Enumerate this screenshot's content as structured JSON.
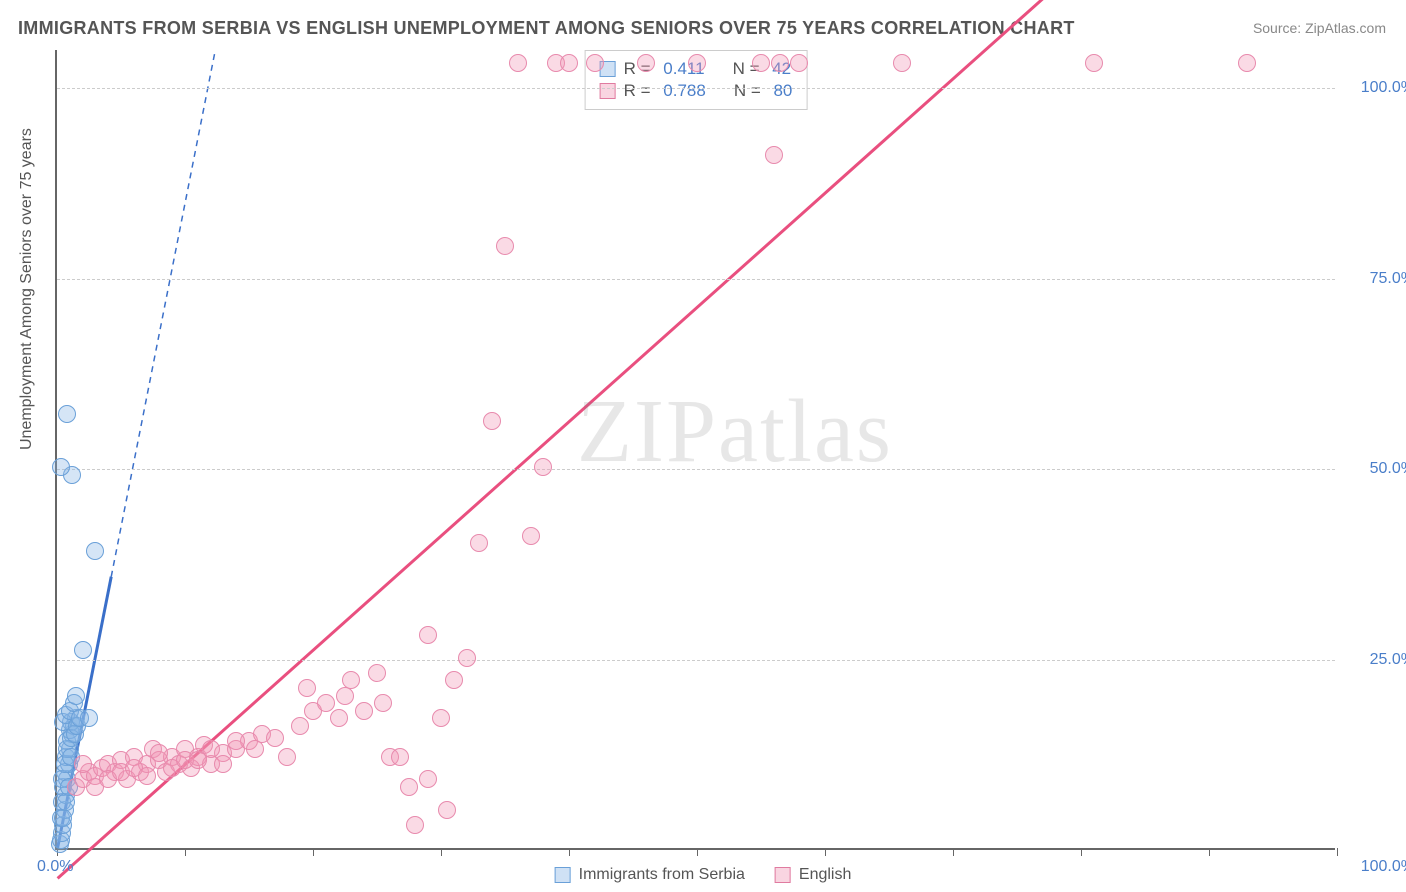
{
  "title": "IMMIGRANTS FROM SERBIA VS ENGLISH UNEMPLOYMENT AMONG SENIORS OVER 75 YEARS CORRELATION CHART",
  "source": "Source: ZipAtlas.com",
  "ylabel": "Unemployment Among Seniors over 75 years",
  "watermark": "ZIPatlas",
  "chart": {
    "type": "scatter",
    "background_color": "#ffffff",
    "grid_color": "#cccccc",
    "axis_color": "#666666",
    "tick_label_color": "#4a7ec9",
    "label_color": "#555555",
    "xlim": [
      0,
      100
    ],
    "ylim": [
      0,
      105
    ],
    "ytick_positions": [
      25,
      50,
      75,
      100
    ],
    "ytick_labels": [
      "25.0%",
      "50.0%",
      "75.0%",
      "100.0%"
    ],
    "xtick_positions": [
      0,
      10,
      20,
      30,
      40,
      50,
      60,
      70,
      80,
      90,
      100
    ],
    "x_zero_label": "0.0%",
    "x_hundred_label": "100.0%",
    "title_fontsize": 18,
    "label_fontsize": 16,
    "marker_size": 18
  },
  "legend_top": {
    "rows": [
      {
        "sq_fill": "rgba(135,180,230,0.4)",
        "sq_border": "#6aa0d8",
        "r_label": "R =",
        "r_value": "0.411",
        "n_label": "N =",
        "n_value": "42"
      },
      {
        "sq_fill": "rgba(240,150,180,0.4)",
        "sq_border": "#e07ba0",
        "r_label": "R =",
        "r_value": "0.788",
        "n_label": "N =",
        "n_value": "80"
      }
    ]
  },
  "legend_bottom": {
    "items": [
      {
        "sq_fill": "rgba(135,180,230,0.4)",
        "sq_border": "#6aa0d8",
        "label": "Immigrants from Serbia"
      },
      {
        "sq_fill": "rgba(240,150,180,0.4)",
        "sq_border": "#e07ba0",
        "label": "English"
      }
    ]
  },
  "series": [
    {
      "name": "Immigrants from Serbia",
      "marker_fill": "rgba(135,180,230,0.35)",
      "marker_border": "#6aa0d8",
      "trend_color": "#3a6fc9",
      "trend_width": 3,
      "trend_dash_extension": true,
      "trend_slope": 8.5,
      "trend_intercept": 0,
      "trend_solid_xmax": 4.2,
      "points": [
        [
          0.2,
          0.5
        ],
        [
          0.3,
          1
        ],
        [
          0.4,
          2
        ],
        [
          0.5,
          3
        ],
        [
          0.3,
          4
        ],
        [
          0.6,
          5
        ],
        [
          0.4,
          6
        ],
        [
          0.7,
          7
        ],
        [
          0.5,
          8
        ],
        [
          0.8,
          9
        ],
        [
          0.6,
          10
        ],
        [
          0.9,
          11
        ],
        [
          0.7,
          12
        ],
        [
          1.0,
          13
        ],
        [
          0.8,
          14
        ],
        [
          1.2,
          15
        ],
        [
          1.0,
          15.5
        ],
        [
          1.3,
          16
        ],
        [
          1.1,
          16.5
        ],
        [
          1.5,
          17
        ],
        [
          0.5,
          16.5
        ],
        [
          0.7,
          17.5
        ],
        [
          1.0,
          18
        ],
        [
          1.3,
          19
        ],
        [
          1.5,
          20
        ],
        [
          0.4,
          9
        ],
        [
          0.6,
          11
        ],
        [
          0.8,
          13
        ],
        [
          1.1,
          14.5
        ],
        [
          1.4,
          15
        ],
        [
          1.6,
          16
        ],
        [
          1.8,
          17
        ],
        [
          2.0,
          26
        ],
        [
          2.5,
          17
        ],
        [
          3.0,
          39
        ],
        [
          1.2,
          49
        ],
        [
          0.8,
          57
        ],
        [
          0.3,
          50
        ],
        [
          0.5,
          4
        ],
        [
          0.7,
          6
        ],
        [
          0.9,
          8
        ],
        [
          1.1,
          12
        ]
      ]
    },
    {
      "name": "English",
      "marker_fill": "rgba(240,150,180,0.35)",
      "marker_border": "#e88aad",
      "trend_color": "#e94f7f",
      "trend_width": 3,
      "trend_dash_extension": false,
      "trend_slope": 1.5,
      "trend_intercept": -4,
      "trend_solid_xmax": 100,
      "points": [
        [
          1.5,
          8
        ],
        [
          2,
          9
        ],
        [
          2.5,
          10
        ],
        [
          3,
          9.5
        ],
        [
          3.5,
          10.5
        ],
        [
          4,
          11
        ],
        [
          4.5,
          10
        ],
        [
          5,
          11.5
        ],
        [
          5.5,
          9
        ],
        [
          6,
          12
        ],
        [
          6.5,
          10
        ],
        [
          7,
          11
        ],
        [
          7.5,
          13
        ],
        [
          8,
          11.5
        ],
        [
          8.5,
          10
        ],
        [
          9,
          12
        ],
        [
          9.5,
          11
        ],
        [
          10,
          13
        ],
        [
          10.5,
          10.5
        ],
        [
          11,
          12
        ],
        [
          11.5,
          13.5
        ],
        [
          12,
          11
        ],
        [
          13,
          12.5
        ],
        [
          14,
          13
        ],
        [
          15,
          14
        ],
        [
          15.5,
          13
        ],
        [
          16,
          15
        ],
        [
          17,
          14.5
        ],
        [
          18,
          12
        ],
        [
          19,
          16
        ],
        [
          19.5,
          21
        ],
        [
          20,
          18
        ],
        [
          21,
          19
        ],
        [
          22,
          17
        ],
        [
          22.5,
          20
        ],
        [
          23,
          22
        ],
        [
          24,
          18
        ],
        [
          25,
          23
        ],
        [
          25.5,
          19
        ],
        [
          26,
          12
        ],
        [
          26.8,
          12
        ],
        [
          27.5,
          8
        ],
        [
          28,
          3
        ],
        [
          29,
          9
        ],
        [
          29,
          28
        ],
        [
          30,
          17
        ],
        [
          30.5,
          5
        ],
        [
          31,
          22
        ],
        [
          32,
          25
        ],
        [
          33,
          40
        ],
        [
          34,
          56
        ],
        [
          35,
          79
        ],
        [
          36,
          103
        ],
        [
          37,
          41
        ],
        [
          38,
          50
        ],
        [
          39,
          103
        ],
        [
          40,
          103
        ],
        [
          42,
          103
        ],
        [
          46,
          103
        ],
        [
          50,
          103
        ],
        [
          55,
          103
        ],
        [
          56,
          91
        ],
        [
          56.5,
          103
        ],
        [
          58,
          103
        ],
        [
          66,
          103
        ],
        [
          81,
          103
        ],
        [
          93,
          103
        ],
        [
          2,
          11
        ],
        [
          3,
          8
        ],
        [
          4,
          9
        ],
        [
          5,
          10
        ],
        [
          6,
          10.5
        ],
        [
          7,
          9.5
        ],
        [
          8,
          12.5
        ],
        [
          9,
          10.5
        ],
        [
          10,
          11.5
        ],
        [
          11,
          11.5
        ],
        [
          12,
          13
        ],
        [
          13,
          11
        ],
        [
          14,
          14
        ]
      ]
    }
  ]
}
